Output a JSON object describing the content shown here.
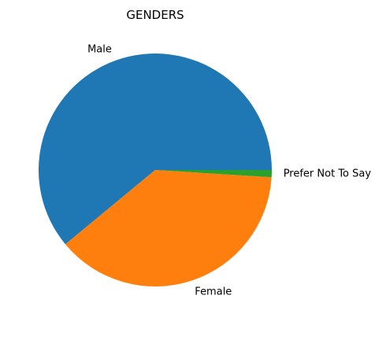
{
  "chart_data": {
    "type": "pie",
    "title": "GENDERS",
    "categories": [
      "Male",
      "Female",
      "Prefer Not To Say"
    ],
    "values": [
      61,
      38,
      1
    ],
    "colors": [
      "#1f77b4",
      "#ff7f0e",
      "#2ca02c"
    ],
    "start_angle_deg": 0,
    "direction": "counterclockwise",
    "legend": "none"
  }
}
